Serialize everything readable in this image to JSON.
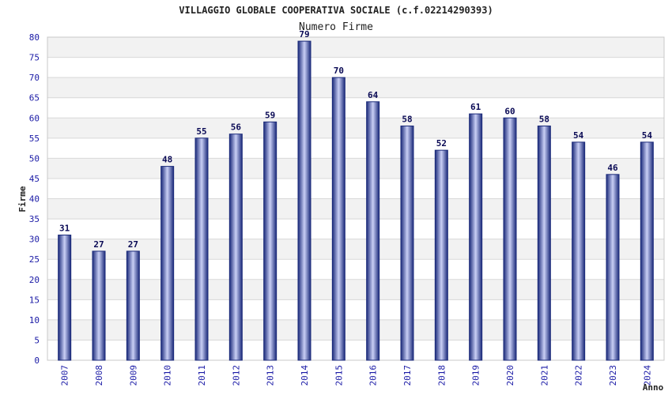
{
  "chart_data": {
    "type": "bar",
    "title": "VILLAGGIO GLOBALE COOPERATIVA SOCIALE (c.f.02214290393)",
    "subtitle": "Numero Firme",
    "xlabel": "Anno",
    "ylabel": "Firme",
    "ylim": [
      0,
      80
    ],
    "ytick_step": 5,
    "grid": true,
    "categories": [
      "2007",
      "2008",
      "2009",
      "2010",
      "2011",
      "2012",
      "2013",
      "2014",
      "2015",
      "2016",
      "2017",
      "2018",
      "2019",
      "2020",
      "2021",
      "2022",
      "2023",
      "2024"
    ],
    "values": [
      31,
      27,
      27,
      48,
      55,
      56,
      59,
      79,
      70,
      64,
      58,
      52,
      61,
      60,
      58,
      54,
      46,
      54
    ]
  },
  "colors": {
    "bar_dark": "#1b2a7a",
    "bar_light": "#c9cff5",
    "axis_text": "#1a1aa6",
    "label_text": "#0a0a55",
    "grid_band": "#f2f2f2",
    "grid_line": "#d8d8d8",
    "title_text": "#222222"
  }
}
